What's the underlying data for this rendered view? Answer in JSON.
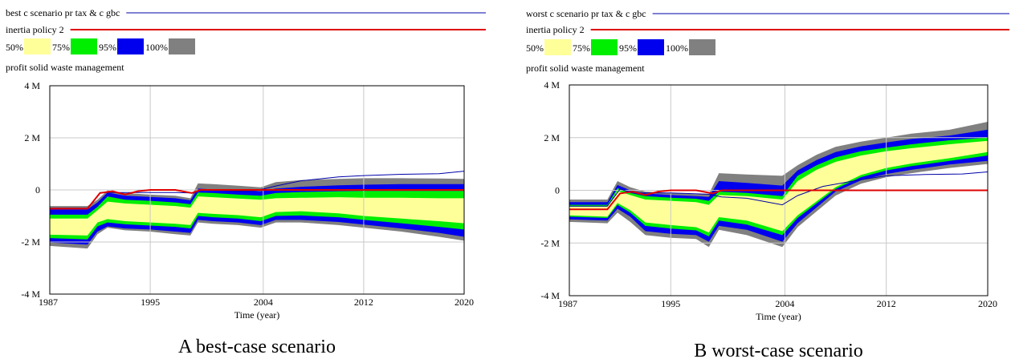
{
  "figure": {
    "colors": {
      "run_line": "#0000aa",
      "policy_line": "#e00000",
      "band_50": "#ffff99",
      "band_75": "#00ee00",
      "band_95": "#0000ee",
      "band_100": "#808080",
      "grid": "#c8c8c8"
    }
  },
  "chart_data": [
    {
      "type": "area",
      "panel_caption": "A best-case scenario",
      "legend_runs": [
        "best c scenario pr tax & c gbc",
        "inertia policy 2"
      ],
      "legend_bands": [
        "50%",
        "75%",
        "95%",
        "100%"
      ],
      "variable_label": "profit solid waste management",
      "xlabel": "Time (year)",
      "xlim": [
        1987,
        2020
      ],
      "ylim": [
        -4,
        4
      ],
      "x_ticks": [
        1987,
        1995,
        2004,
        2012,
        2020
      ],
      "y_ticks": [
        -4,
        -2,
        0,
        2,
        4
      ],
      "y_tick_labels": [
        "-4 M",
        "-2 M",
        "0",
        "2 M",
        "4 M"
      ],
      "grid": true,
      "x": [
        1987,
        1990,
        1990.8,
        1991.6,
        1993,
        1995,
        1997,
        1998.2,
        1998.8,
        2000,
        2002,
        2003.8,
        2005,
        2007,
        2010,
        2012,
        2015,
        2018,
        2020
      ],
      "bands": {
        "p100": {
          "lo": [
            -2.15,
            -2.25,
            -1.7,
            -1.45,
            -1.55,
            -1.6,
            -1.7,
            -1.75,
            -1.25,
            -1.3,
            -1.35,
            -1.45,
            -1.25,
            -1.25,
            -1.35,
            -1.45,
            -1.6,
            -1.8,
            -1.95
          ],
          "hi": [
            -0.62,
            -0.62,
            -0.38,
            -0.02,
            -0.12,
            -0.18,
            -0.22,
            -0.32,
            0.25,
            0.22,
            0.16,
            0.1,
            0.3,
            0.38,
            0.42,
            0.45,
            0.45,
            0.44,
            0.42
          ]
        },
        "p95": {
          "lo": [
            -2.02,
            -2.1,
            -1.6,
            -1.4,
            -1.48,
            -1.52,
            -1.6,
            -1.65,
            -1.15,
            -1.2,
            -1.25,
            -1.35,
            -1.15,
            -1.15,
            -1.23,
            -1.33,
            -1.48,
            -1.65,
            -1.8
          ],
          "hi": [
            -0.75,
            -0.75,
            -0.48,
            -0.1,
            -0.22,
            -0.27,
            -0.32,
            -0.4,
            0.05,
            0.02,
            -0.02,
            -0.05,
            0.05,
            0.12,
            0.18,
            0.2,
            0.22,
            0.22,
            0.22
          ]
        },
        "p75": {
          "lo": [
            -1.85,
            -1.9,
            -1.4,
            -1.25,
            -1.32,
            -1.37,
            -1.42,
            -1.48,
            -1.0,
            -1.05,
            -1.1,
            -1.2,
            -1.0,
            -0.98,
            -1.05,
            -1.15,
            -1.28,
            -1.42,
            -1.52
          ],
          "hi": [
            -0.95,
            -0.95,
            -0.65,
            -0.25,
            -0.38,
            -0.42,
            -0.48,
            -0.55,
            -0.1,
            -0.12,
            -0.18,
            -0.22,
            -0.12,
            -0.08,
            -0.05,
            -0.04,
            -0.04,
            -0.04,
            -0.04
          ]
        },
        "p50": {
          "lo": [
            -1.72,
            -1.75,
            -1.25,
            -1.12,
            -1.2,
            -1.25,
            -1.3,
            -1.35,
            -0.88,
            -0.92,
            -0.97,
            -1.05,
            -0.85,
            -0.82,
            -0.9,
            -1.0,
            -1.1,
            -1.2,
            -1.28
          ],
          "hi": [
            -1.1,
            -1.1,
            -0.78,
            -0.45,
            -0.52,
            -0.57,
            -0.62,
            -0.68,
            -0.25,
            -0.28,
            -0.33,
            -0.38,
            -0.32,
            -0.3,
            -0.28,
            -0.3,
            -0.3,
            -0.32,
            -0.32
          ]
        }
      },
      "series": [
        {
          "name": "best c scenario pr tax & c gbc",
          "x": [
            1987,
            1990,
            1991,
            1992,
            1993,
            1995,
            1997,
            1998.5,
            1999,
            2000,
            2002,
            2003.5,
            2005,
            2007,
            2010,
            2012,
            2015,
            2018,
            2020
          ],
          "values": [
            -0.7,
            -0.7,
            -0.1,
            -0.1,
            -0.1,
            -0.1,
            -0.1,
            -0.12,
            0.02,
            0.0,
            -0.05,
            -0.02,
            0.15,
            0.35,
            0.5,
            0.55,
            0.6,
            0.62,
            0.72
          ]
        },
        {
          "name": "inertia policy 2",
          "x": [
            1987,
            1990,
            1991,
            1992,
            1993,
            1994,
            1995,
            1997,
            1998.3,
            1999,
            2020
          ],
          "values": [
            -0.72,
            -0.72,
            -0.12,
            -0.05,
            -0.18,
            -0.05,
            0.0,
            0.0,
            -0.12,
            0.0,
            0.0
          ]
        }
      ]
    },
    {
      "type": "area",
      "panel_caption": "B worst-case scenario",
      "legend_runs": [
        "worst c scenario pr tax & c gbc",
        "inertia policy 2"
      ],
      "legend_bands": [
        "50%",
        "75%",
        "95%",
        "100%"
      ],
      "variable_label": "profit solid waste management",
      "xlabel": "Time (year)",
      "xlim": [
        1987,
        2020
      ],
      "ylim": [
        -4,
        4
      ],
      "x_ticks": [
        1987,
        1995,
        2004,
        2012,
        2020
      ],
      "y_ticks": [
        -4,
        -2,
        0,
        2,
        4
      ],
      "y_tick_labels": [
        "-4 M",
        "-2 M",
        "0",
        "2 M",
        "4 M"
      ],
      "grid": true,
      "x": [
        1987,
        1990,
        1990.8,
        1991.8,
        1993,
        1995,
        1997,
        1998,
        1998.8,
        2001,
        2003.8,
        2005,
        2006.5,
        2008,
        2010,
        2012,
        2014,
        2017,
        2020
      ],
      "bands": {
        "p100": {
          "lo": [
            -1.2,
            -1.25,
            -0.85,
            -1.2,
            -1.7,
            -1.8,
            -1.85,
            -2.15,
            -1.5,
            -1.7,
            -2.15,
            -1.4,
            -0.8,
            -0.2,
            0.25,
            0.5,
            0.65,
            0.85,
            1.0
          ],
          "hi": [
            -0.35,
            -0.35,
            0.35,
            0.12,
            -0.05,
            -0.1,
            -0.15,
            -0.15,
            0.65,
            0.6,
            0.55,
            0.95,
            1.35,
            1.65,
            1.85,
            2.0,
            2.15,
            2.3,
            2.6
          ]
        },
        "p95": {
          "lo": [
            -1.1,
            -1.15,
            -0.7,
            -1.0,
            -1.55,
            -1.65,
            -1.7,
            -1.95,
            -1.35,
            -1.5,
            -1.95,
            -1.25,
            -0.65,
            -0.05,
            0.38,
            0.62,
            0.78,
            0.98,
            1.12
          ],
          "hi": [
            -0.45,
            -0.45,
            0.2,
            0.0,
            -0.12,
            -0.18,
            -0.22,
            -0.25,
            0.35,
            0.28,
            0.18,
            0.75,
            1.15,
            1.45,
            1.67,
            1.82,
            1.95,
            2.08,
            2.3
          ]
        },
        "p75": {
          "lo": [
            -1.0,
            -1.05,
            -0.55,
            -0.85,
            -1.35,
            -1.45,
            -1.52,
            -1.75,
            -1.15,
            -1.3,
            -1.7,
            -1.05,
            -0.5,
            0.05,
            0.5,
            0.75,
            0.92,
            1.12,
            1.32
          ],
          "hi": [
            -0.55,
            -0.55,
            0.08,
            -0.1,
            -0.22,
            -0.28,
            -0.32,
            -0.4,
            -0.05,
            -0.1,
            -0.22,
            0.55,
            0.95,
            1.25,
            1.48,
            1.62,
            1.75,
            1.9,
            2.0
          ]
        },
        "p50": {
          "lo": [
            -0.95,
            -1.0,
            -0.48,
            -0.75,
            -1.22,
            -1.32,
            -1.4,
            -1.6,
            -1.02,
            -1.15,
            -1.55,
            -0.95,
            -0.42,
            0.12,
            0.58,
            0.85,
            1.02,
            1.22,
            1.45
          ],
          "hi": [
            -0.62,
            -0.62,
            -0.02,
            -0.18,
            -0.35,
            -0.4,
            -0.45,
            -0.55,
            -0.18,
            -0.22,
            -0.35,
            0.35,
            0.78,
            1.08,
            1.32,
            1.48,
            1.6,
            1.75,
            1.88
          ]
        }
      },
      "series": [
        {
          "name": "worst c scenario pr tax & c gbc",
          "x": [
            1987,
            1990,
            1991,
            1992,
            1995,
            1998,
            1999,
            2001,
            2003.8,
            2005,
            2007,
            2010,
            2012,
            2015,
            2018,
            2020
          ],
          "values": [
            -0.6,
            -0.6,
            0.05,
            -0.1,
            -0.1,
            -0.15,
            -0.25,
            -0.3,
            -0.55,
            -0.2,
            0.15,
            0.4,
            0.55,
            0.6,
            0.62,
            0.7
          ]
        },
        {
          "name": "inertia policy 2",
          "x": [
            1987,
            1990,
            1991,
            1992,
            1993,
            1994,
            1995,
            1997,
            1998.3,
            1999,
            2020
          ],
          "values": [
            -0.72,
            -0.72,
            -0.12,
            -0.05,
            -0.18,
            -0.05,
            0.0,
            0.0,
            -0.12,
            0.0,
            0.0
          ]
        }
      ]
    }
  ]
}
